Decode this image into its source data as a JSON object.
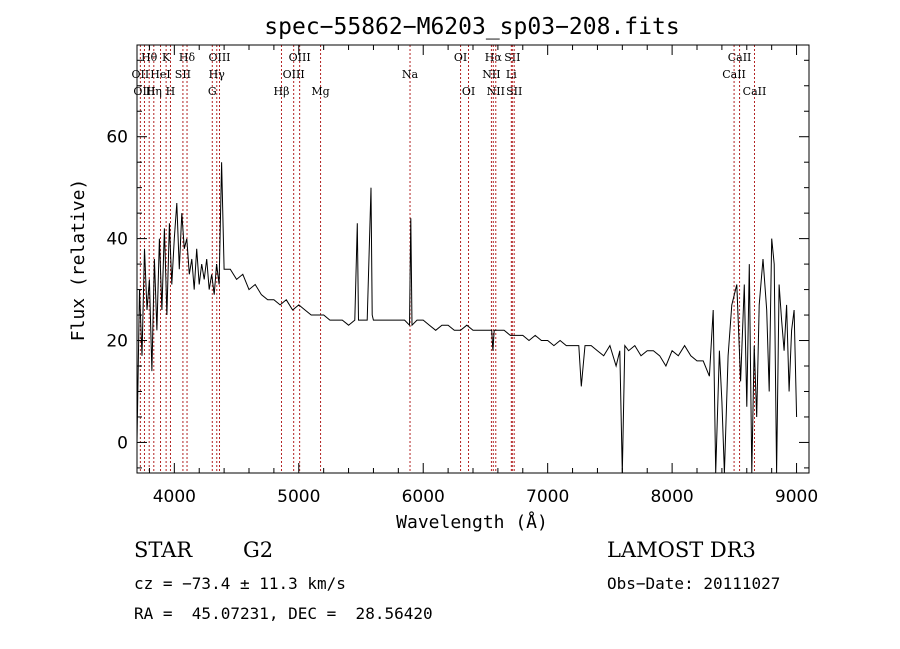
{
  "chart_data": {
    "type": "line",
    "title": "spec−55862−M6203_sp03−208.fits",
    "xlabel": "Wavelength (Å)",
    "ylabel": "Flux (relative)",
    "xlim": [
      3700,
      9100
    ],
    "ylim": [
      -6,
      78
    ],
    "x_ticks": [
      4000,
      5000,
      6000,
      7000,
      8000,
      9000
    ],
    "y_ticks": [
      0,
      20,
      40,
      60
    ],
    "grid": false,
    "line_color": "#000000",
    "marker_color": "#b22222",
    "series": [
      {
        "name": "spectrum",
        "x": [
          3700,
          3720,
          3740,
          3760,
          3780,
          3800,
          3820,
          3840,
          3860,
          3880,
          3900,
          3920,
          3940,
          3960,
          3980,
          4000,
          4020,
          4040,
          4060,
          4080,
          4100,
          4120,
          4140,
          4160,
          4180,
          4200,
          4220,
          4240,
          4260,
          4280,
          4300,
          4320,
          4340,
          4360,
          4380,
          4400,
          4450,
          4500,
          4550,
          4600,
          4650,
          4700,
          4750,
          4800,
          4850,
          4900,
          4950,
          5000,
          5050,
          5100,
          5150,
          5200,
          5250,
          5300,
          5350,
          5400,
          5450,
          5470,
          5480,
          5500,
          5550,
          5580,
          5590,
          5600,
          5650,
          5700,
          5750,
          5800,
          5850,
          5890,
          5900,
          5910,
          5950,
          6000,
          6050,
          6100,
          6150,
          6200,
          6250,
          6300,
          6350,
          6400,
          6450,
          6500,
          6550,
          6560,
          6570,
          6600,
          6650,
          6700,
          6750,
          6800,
          6850,
          6900,
          6950,
          7000,
          7050,
          7100,
          7150,
          7200,
          7250,
          7270,
          7300,
          7350,
          7400,
          7450,
          7500,
          7550,
          7580,
          7600,
          7620,
          7650,
          7700,
          7750,
          7800,
          7850,
          7900,
          7950,
          8000,
          8050,
          8100,
          8150,
          8200,
          8250,
          8300,
          8330,
          8350,
          8380,
          8400,
          8420,
          8450,
          8480,
          8500,
          8520,
          8550,
          8580,
          8600,
          8620,
          8640,
          8660,
          8680,
          8700,
          8730,
          8760,
          8780,
          8800,
          8820,
          8840,
          8860,
          8880,
          8900,
          8920,
          8940,
          8960,
          8980,
          9000
        ],
        "y": [
          0,
          30,
          17,
          38,
          26,
          32,
          14,
          36,
          22,
          40,
          26,
          42,
          25,
          43,
          31,
          40,
          47,
          34,
          45,
          38,
          40,
          33,
          36,
          30,
          38,
          31,
          35,
          32,
          36,
          30,
          33,
          29,
          35,
          31,
          55,
          34,
          34,
          32,
          33,
          30,
          31,
          29,
          28,
          28,
          27,
          28,
          26,
          27,
          26,
          25,
          25,
          25,
          24,
          24,
          24,
          23,
          24,
          43,
          24,
          24,
          24,
          50,
          25,
          24,
          24,
          24,
          24,
          24,
          24,
          23,
          44,
          23,
          24,
          24,
          23,
          22,
          23,
          23,
          22,
          22,
          23,
          22,
          22,
          22,
          22,
          18,
          22,
          22,
          22,
          21,
          21,
          21,
          20,
          21,
          20,
          20,
          19,
          20,
          19,
          19,
          19,
          11,
          19,
          19,
          18,
          17,
          19,
          15,
          18,
          -6,
          19,
          18,
          19,
          17,
          18,
          18,
          17,
          15,
          18,
          17,
          19,
          17,
          16,
          16,
          13,
          26,
          -6,
          18,
          8,
          -6,
          17,
          27,
          29,
          31,
          12,
          31,
          7,
          35,
          -6,
          19,
          5,
          27,
          36,
          26,
          10,
          40,
          35,
          -6,
          31,
          24,
          18,
          27,
          10,
          22,
          26,
          5
        ]
      }
    ],
    "line_markers": [
      {
        "label": "Hθ",
        "wave": 3798,
        "row": 1
      },
      {
        "label": "OII",
        "wave": 3727,
        "row": 2
      },
      {
        "label": "OIII",
        "wave": 3760,
        "row": 3
      },
      {
        "label": "K",
        "wave": 3934,
        "row": 1
      },
      {
        "label": "HeI",
        "wave": 3889,
        "row": 2
      },
      {
        "label": "Hη",
        "wave": 3835,
        "row": 3
      },
      {
        "label": "H",
        "wave": 3969,
        "row": 3
      },
      {
        "label": "Hδ",
        "wave": 4102,
        "row": 1
      },
      {
        "label": "SII",
        "wave": 4069,
        "row": 2
      },
      {
        "label": "OIII",
        "wave": 4363,
        "row": 1
      },
      {
        "label": "Hγ",
        "wave": 4341,
        "row": 2
      },
      {
        "label": "G",
        "wave": 4305,
        "row": 3
      },
      {
        "label": "Hβ",
        "wave": 4861,
        "row": 3
      },
      {
        "label": "OIII",
        "wave": 5007,
        "row": 1
      },
      {
        "label": "OIII",
        "wave": 4959,
        "row": 2
      },
      {
        "label": "Mg",
        "wave": 5175,
        "row": 3
      },
      {
        "label": "Na",
        "wave": 5894,
        "row": 2
      },
      {
        "label": "OI",
        "wave": 6300,
        "row": 1
      },
      {
        "label": "OI",
        "wave": 6364,
        "row": 3
      },
      {
        "label": "Hα",
        "wave": 6563,
        "row": 1
      },
      {
        "label": "NII",
        "wave": 6548,
        "row": 2
      },
      {
        "label": "NII",
        "wave": 6583,
        "row": 3
      },
      {
        "label": "SII",
        "wave": 6716,
        "row": 1
      },
      {
        "label": "Li",
        "wave": 6708,
        "row": 2
      },
      {
        "label": "SII",
        "wave": 6731,
        "row": 3
      },
      {
        "label": "CaII",
        "wave": 8542,
        "row": 1
      },
      {
        "label": "CaII",
        "wave": 8498,
        "row": 2
      },
      {
        "label": "CaII",
        "wave": 8662,
        "row": 3
      }
    ]
  },
  "footer": {
    "object_class": "STAR",
    "subclass": "G2",
    "survey": "LAMOST DR3",
    "cz": "cz = −73.4 ± 11.3 km/s",
    "obs_date": "Obs−Date: 20111027",
    "radec": "RA =  45.07231, DEC =  28.56420"
  }
}
